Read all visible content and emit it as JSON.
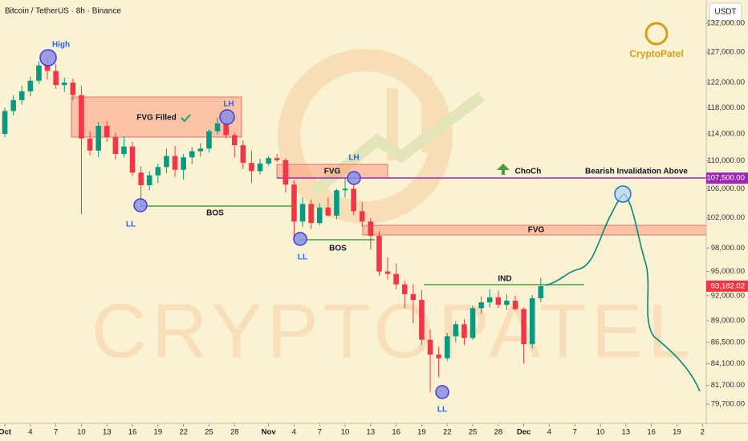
{
  "chart_data": {
    "type": "candlestick",
    "title": "Bitcoin / TetherUS · 8h · Binance",
    "currency": "USDT",
    "log_scale": true,
    "ylim": [
      77700,
      136100
    ],
    "yticks": [
      {
        "value": 132000,
        "label": "132,000.00"
      },
      {
        "value": 127000,
        "label": "127,000.00"
      },
      {
        "value": 122000,
        "label": "122,000.00"
      },
      {
        "value": 118000,
        "label": "118,000.00"
      },
      {
        "value": 114000,
        "label": "114,000.00"
      },
      {
        "value": 110000,
        "label": "110,000.00"
      },
      {
        "value": 106000,
        "label": "106,000.00"
      },
      {
        "value": 102000,
        "label": "102,000.00"
      },
      {
        "value": 98000,
        "label": "98,000.00"
      },
      {
        "value": 95000,
        "label": "95,000.00"
      },
      {
        "value": 92000,
        "label": "92,000.00"
      },
      {
        "value": 89000,
        "label": "89,000.00"
      },
      {
        "value": 86500,
        "label": "86,500.00"
      },
      {
        "value": 84100,
        "label": "84,100.00"
      },
      {
        "value": 81700,
        "label": "81,700.00"
      },
      {
        "value": 79700,
        "label": "79,700.00"
      }
    ],
    "xlim": [
      -0.57,
      82.45
    ],
    "xticks": [
      {
        "value": 0,
        "label": "Oct"
      },
      {
        "value": 3,
        "label": "4"
      },
      {
        "value": 6,
        "label": "7"
      },
      {
        "value": 9,
        "label": "10"
      },
      {
        "value": 12,
        "label": "13"
      },
      {
        "value": 15,
        "label": "16"
      },
      {
        "value": 18,
        "label": "19"
      },
      {
        "value": 21,
        "label": "22"
      },
      {
        "value": 24,
        "label": "25"
      },
      {
        "value": 27,
        "label": "28"
      },
      {
        "value": 31,
        "label": "Nov"
      },
      {
        "value": 34,
        "label": "4"
      },
      {
        "value": 37,
        "label": "7"
      },
      {
        "value": 40,
        "label": "10"
      },
      {
        "value": 43,
        "label": "13"
      },
      {
        "value": 46,
        "label": "16"
      },
      {
        "value": 49,
        "label": "19"
      },
      {
        "value": 52,
        "label": "22"
      },
      {
        "value": 55,
        "label": "25"
      },
      {
        "value": 58,
        "label": "28"
      },
      {
        "value": 61,
        "label": "Dec"
      },
      {
        "value": 64,
        "label": "4"
      },
      {
        "value": 67,
        "label": "7"
      },
      {
        "value": 70,
        "label": "10"
      },
      {
        "value": 73,
        "label": "13"
      },
      {
        "value": 76,
        "label": "16"
      },
      {
        "value": 79,
        "label": "19"
      },
      {
        "value": 82,
        "label": "2"
      }
    ],
    "up_color": "#089981",
    "down_color": "#f23645",
    "x": [
      0,
      1,
      2,
      3,
      4,
      5,
      6,
      7,
      8,
      9,
      10,
      11,
      12,
      13,
      14,
      15,
      16,
      17,
      18,
      19,
      20,
      21,
      22,
      23,
      24,
      25,
      26,
      27,
      28,
      29,
      30,
      31,
      32,
      33,
      34,
      35,
      36,
      37,
      38,
      39,
      40,
      41,
      42,
      43,
      44,
      45,
      46,
      47,
      48,
      49,
      50,
      51,
      52,
      53,
      54,
      55,
      56,
      57,
      58,
      59,
      60,
      61,
      62,
      63
    ],
    "open": [
      114000,
      117500,
      119200,
      120600,
      122300,
      124800,
      123900,
      121600,
      122000,
      120000,
      113300,
      111500,
      115200,
      113500,
      111000,
      112100,
      108300,
      106500,
      107900,
      109100,
      110700,
      108700,
      110500,
      111400,
      111800,
      114400,
      115600,
      113800,
      112300,
      109700,
      108500,
      109600,
      110400,
      110100,
      106600,
      101500,
      103900,
      101300,
      103400,
      102300,
      105800,
      106000,
      102900,
      101500,
      99600,
      95000,
      94700,
      93400,
      92200,
      91500,
      86800,
      85100,
      84700,
      87200,
      88600,
      87000,
      90500,
      91200,
      91800,
      90900,
      91400,
      90400,
      86300,
      91700
    ],
    "high": [
      118000,
      120000,
      121500,
      123000,
      125500,
      126200,
      125100,
      122800,
      122600,
      121500,
      114400,
      115800,
      116000,
      114200,
      113600,
      112800,
      109200,
      108500,
      109600,
      111800,
      112200,
      111000,
      112000,
      112600,
      114700,
      116500,
      116600,
      114200,
      113000,
      111500,
      110300,
      110700,
      111000,
      110400,
      107200,
      104800,
      104500,
      104000,
      104800,
      106000,
      107500,
      106600,
      104200,
      102000,
      100200,
      96800,
      96000,
      93800,
      93400,
      92700,
      88000,
      86000,
      87600,
      89000,
      89200,
      90800,
      91900,
      92800,
      92600,
      92200,
      92000,
      90600,
      92100,
      94200
    ],
    "low": [
      113500,
      116800,
      118500,
      119800,
      121800,
      122500,
      121000,
      120500,
      119200,
      102500,
      110800,
      110500,
      112800,
      110200,
      110500,
      107800,
      103700,
      105800,
      106800,
      108200,
      107700,
      107300,
      109500,
      110600,
      111200,
      113900,
      113300,
      110500,
      108800,
      106800,
      108000,
      109300,
      109800,
      105500,
      99200,
      100800,
      100500,
      101000,
      102200,
      101800,
      104800,
      102400,
      100800,
      97800,
      94500,
      94000,
      92800,
      90500,
      88700,
      86200,
      81000,
      82600,
      84400,
      86500,
      86200,
      86800,
      89800,
      90600,
      90500,
      90300,
      90200,
      84100,
      85800,
      91200
    ],
    "close": [
      117500,
      119200,
      120600,
      122300,
      124800,
      123900,
      121600,
      122000,
      120000,
      113300,
      111500,
      115200,
      113500,
      111000,
      112100,
      108300,
      106500,
      107900,
      109100,
      110700,
      108700,
      110500,
      111400,
      111800,
      114400,
      115600,
      113800,
      112300,
      109700,
      108500,
      109600,
      110400,
      110100,
      106600,
      101500,
      103900,
      101300,
      103400,
      102300,
      105800,
      106000,
      102900,
      101500,
      99600,
      95000,
      94700,
      93400,
      92200,
      91500,
      86800,
      85100,
      84700,
      87200,
      88600,
      87000,
      90500,
      91200,
      91800,
      90900,
      91400,
      90400,
      86300,
      91700,
      93182
    ],
    "price_labels": [
      {
        "value": 107500,
        "label": "107,500.00",
        "color": "#9c27b0"
      },
      {
        "value": 93182.02,
        "label": "93,182.02",
        "color": "#f23645"
      }
    ],
    "annotations": {
      "high": "High",
      "fvg_filled": "FVG Filled",
      "lh1": "LH",
      "ll1": "LL",
      "bos1": "BOS",
      "fvg2": "FVG",
      "lh2": "LH",
      "ll2": "LL",
      "bos2": "BOS",
      "fvg3": "FVG",
      "choch": "ChoCh",
      "invalidation": "Bearish Invalidation Above",
      "ind": "IND",
      "ll3": "LL"
    },
    "watermark": "CRYPTOPATEL",
    "logo": "CryptoPatel"
  }
}
